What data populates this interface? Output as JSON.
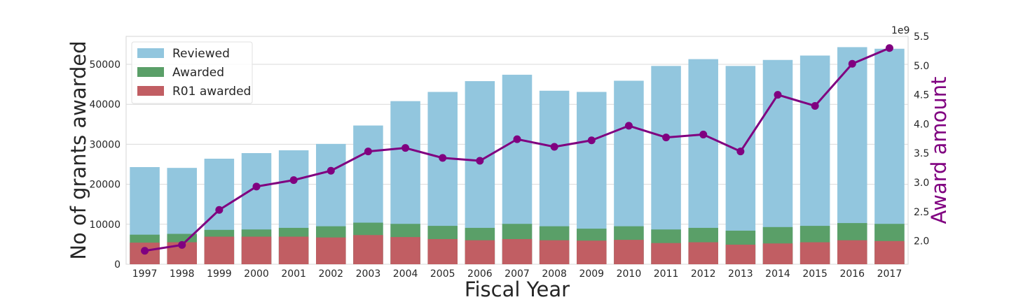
{
  "chart_data": {
    "type": "bar",
    "categories": [
      "1997",
      "1998",
      "1999",
      "2000",
      "2001",
      "2002",
      "2003",
      "2004",
      "2005",
      "2006",
      "2007",
      "2008",
      "2009",
      "2010",
      "2011",
      "2012",
      "2013",
      "2014",
      "2015",
      "2016",
      "2017"
    ],
    "series": [
      {
        "name": "Reviewed",
        "type": "bar",
        "axis": "left",
        "color": "#92c6de",
        "values": [
          24300,
          24100,
          26400,
          27800,
          28500,
          30100,
          34700,
          40800,
          43100,
          45800,
          47400,
          43400,
          43100,
          45900,
          49600,
          51300,
          49600,
          51100,
          52200,
          54300,
          53900
        ]
      },
      {
        "name": "Awarded",
        "type": "bar",
        "axis": "left",
        "color": "#5a9f68",
        "values": [
          7400,
          7600,
          8600,
          8700,
          9100,
          9500,
          10400,
          10100,
          9600,
          9100,
          10100,
          9500,
          8900,
          9500,
          8700,
          9100,
          8400,
          9300,
          9600,
          10300,
          10100
        ]
      },
      {
        "name": "R01 awarded",
        "type": "bar",
        "axis": "left",
        "color": "#c15e63",
        "values": [
          5400,
          5500,
          6900,
          6900,
          6900,
          6700,
          7300,
          6800,
          6300,
          6000,
          6300,
          6000,
          5900,
          6100,
          5300,
          5500,
          4900,
          5200,
          5500,
          6000,
          5800
        ]
      },
      {
        "name": "",
        "type": "line",
        "axis": "right",
        "color": "#800080",
        "values": [
          1.83,
          1.93,
          2.53,
          2.93,
          3.04,
          3.2,
          3.53,
          3.59,
          3.42,
          3.37,
          3.74,
          3.61,
          3.72,
          3.97,
          3.77,
          3.82,
          3.53,
          4.5,
          4.31,
          5.03,
          5.3
        ]
      }
    ],
    "xlabel": "Fiscal Year",
    "ylabel": "No of grants awarded",
    "y2label": "Award amount",
    "y2_offset_label": "1e9",
    "ylim": [
      0,
      57000
    ],
    "y2lim": [
      1.6,
      5.5
    ],
    "yticks": [
      0,
      10000,
      20000,
      30000,
      40000,
      50000
    ],
    "ytick_labels": [
      "0",
      "10000",
      "20000",
      "30000",
      "40000",
      "50000"
    ],
    "y2ticks": [
      2.0,
      2.5,
      3.0,
      3.5,
      4.0,
      4.5,
      5.0,
      5.5
    ],
    "y2tick_labels": [
      "2.0",
      "2.5",
      "3.0",
      "3.5",
      "4.0",
      "4.5",
      "5.0",
      "5.5"
    ],
    "grid": true,
    "legend": "top-left",
    "right_axis_color": "#800080"
  }
}
